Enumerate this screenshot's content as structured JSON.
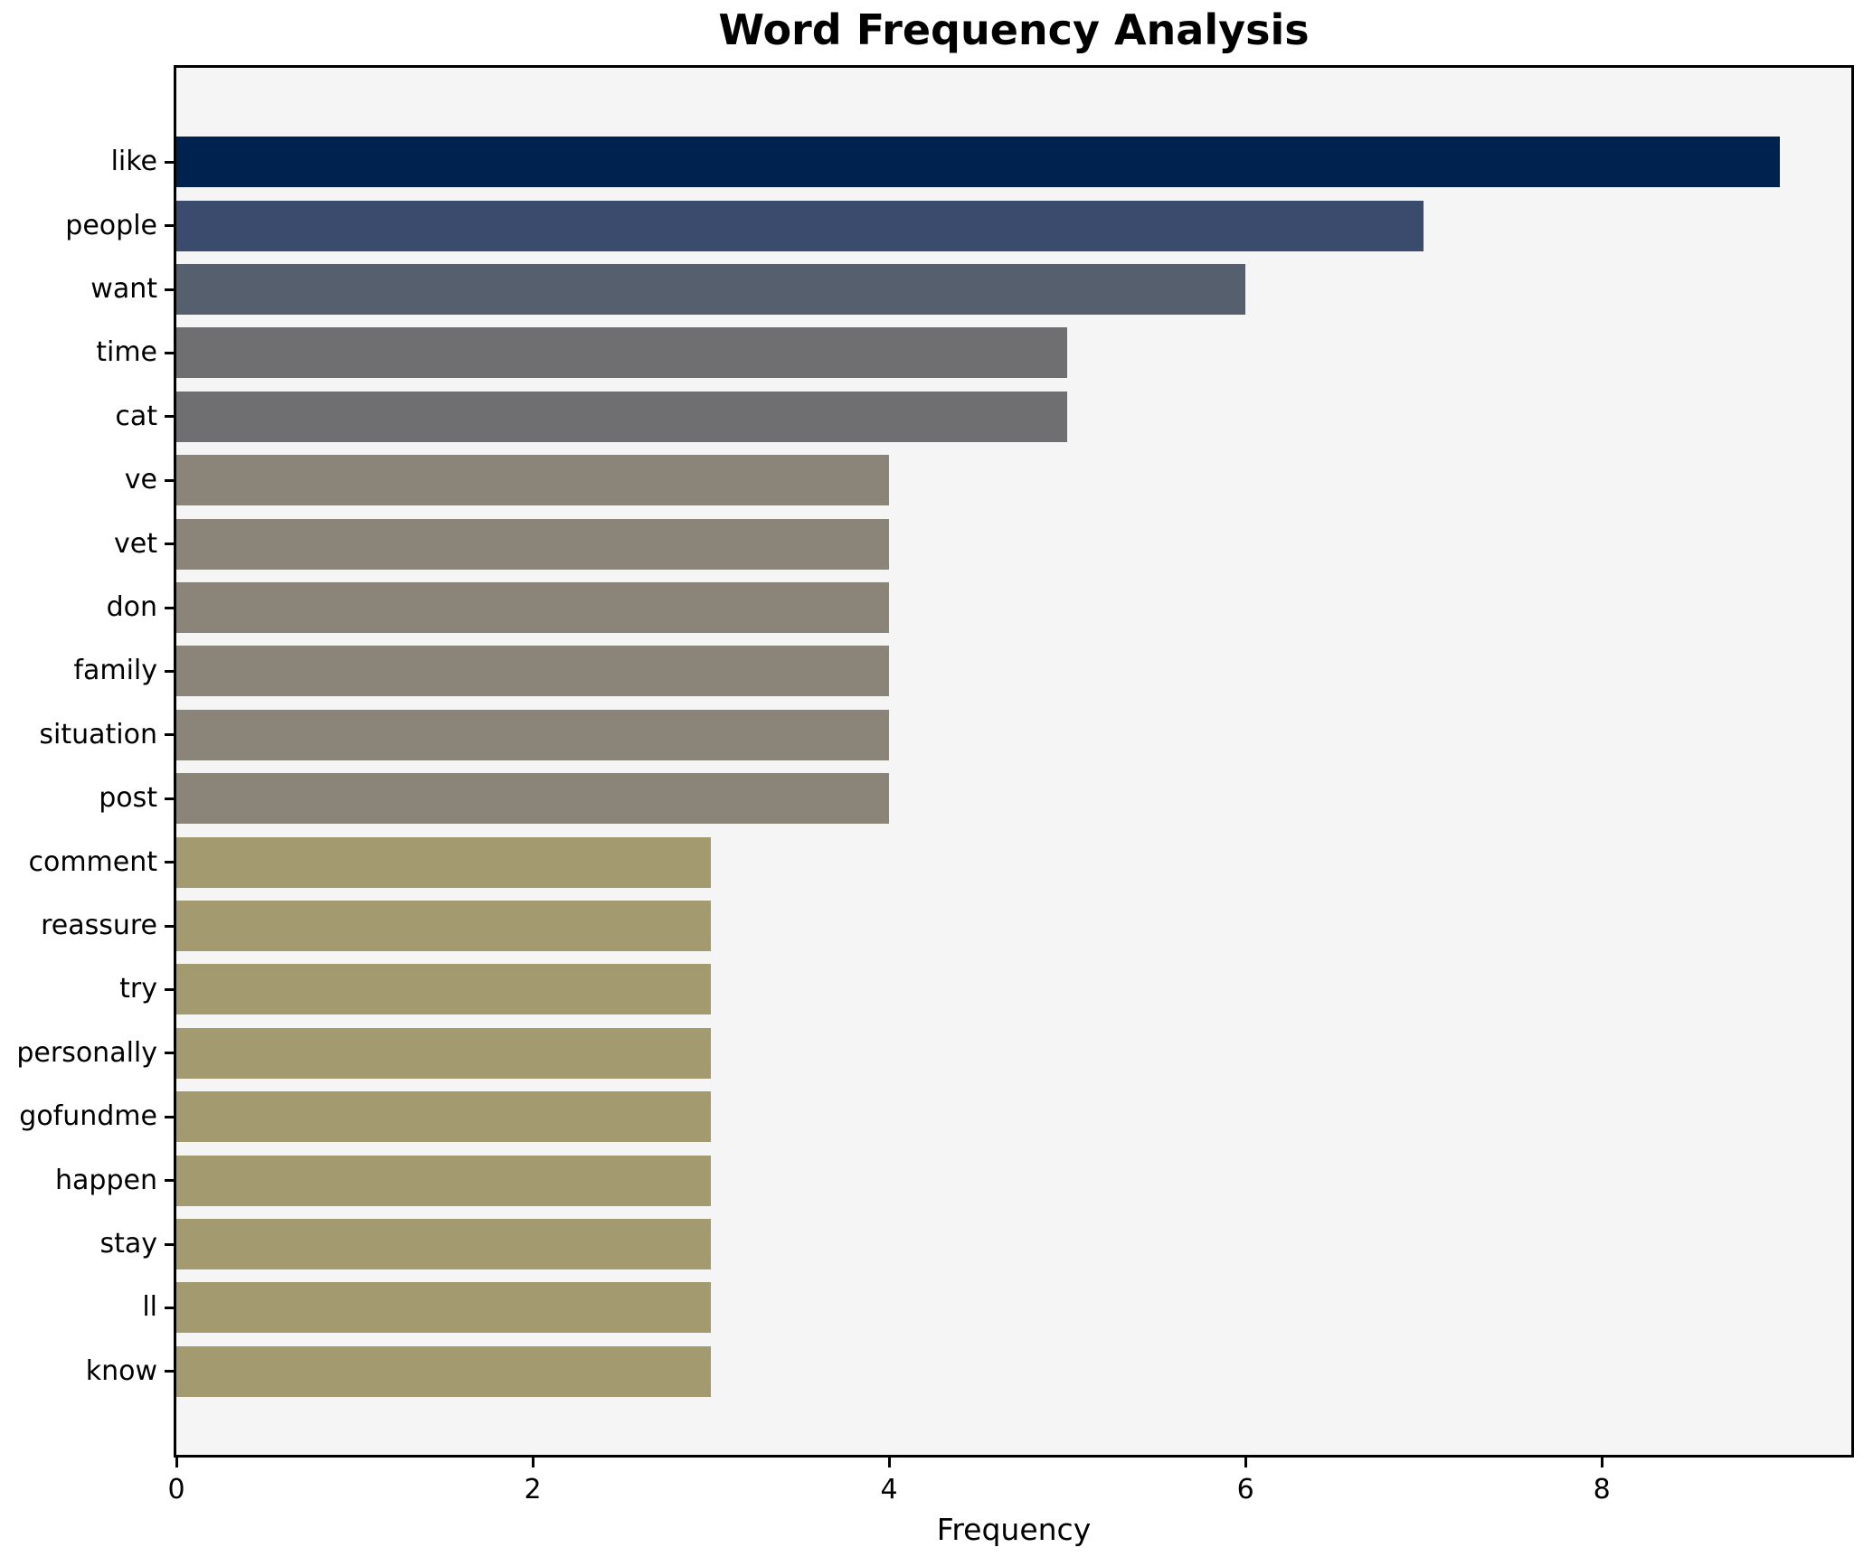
{
  "chart": {
    "title": "Word Frequency Analysis",
    "xlabel": "Frequency"
  },
  "colors": {
    "figure_background": "#ffffff",
    "plot_background": "#f5f5f6",
    "spine": "#000000",
    "text": "#000000",
    "value_9_bar": "#00224e",
    "value_7_bar": "#3b4b6e",
    "value_6_bar": "#565f6e",
    "value_5_bar": "#6f6f72",
    "value_4_bar": "#8a8578",
    "value_3_bar": "#a49a70"
  },
  "chart_data": {
    "type": "bar",
    "orientation": "horizontal",
    "title": "Word Frequency Analysis",
    "xlabel": "Frequency",
    "ylabel": "",
    "categories": [
      "like",
      "people",
      "want",
      "time",
      "cat",
      "ve",
      "vet",
      "don",
      "family",
      "situation",
      "post",
      "comment",
      "reassure",
      "try",
      "personally",
      "gofundme",
      "happen",
      "stay",
      "ll",
      "know"
    ],
    "values": [
      9,
      7,
      6,
      5,
      5,
      4,
      4,
      4,
      4,
      4,
      4,
      3,
      3,
      3,
      3,
      3,
      3,
      3,
      3,
      3
    ],
    "bar_colors": [
      "#00224e",
      "#3b4b6e",
      "#565f6e",
      "#6f6f72",
      "#6f6f72",
      "#8a8578",
      "#8a8578",
      "#8a8578",
      "#8a8578",
      "#8a8578",
      "#8a8578",
      "#a49a70",
      "#a49a70",
      "#a49a70",
      "#a49a70",
      "#a49a70",
      "#a49a70",
      "#a49a70",
      "#a49a70",
      "#a49a70"
    ],
    "xlim": [
      0,
      9.4
    ],
    "xticks": [
      0,
      2,
      4,
      6,
      8
    ],
    "grid": false,
    "legend": false
  }
}
